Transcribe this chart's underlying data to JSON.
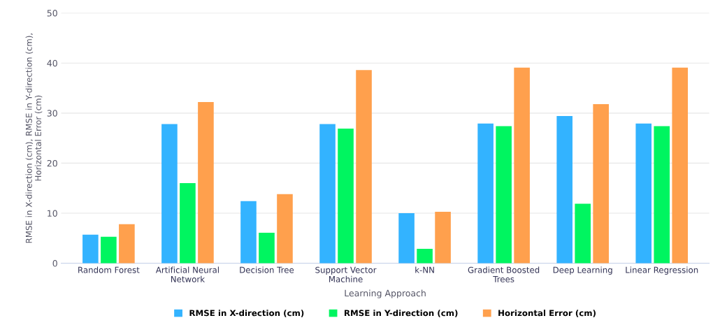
{
  "chart_data": {
    "type": "bar",
    "xlabel": "Learning Approach",
    "ylabel": "RMSE in X-direction (cm), RMSE in Y-direction (cm),\nHorizontal Error (cm)",
    "categories": [
      "Random Forest",
      "Artificial Neural\nNetwork",
      "Decision Tree",
      "Support Vector\nMachine",
      "k-NN",
      "Gradient Boosted\nTrees",
      "Deep Learning",
      "Linear Regression"
    ],
    "series": [
      {
        "name": "RMSE in X-direction (cm)",
        "color": "#33b3ff",
        "values": [
          5.7,
          27.8,
          12.4,
          27.8,
          10.0,
          27.9,
          29.4,
          27.9
        ]
      },
      {
        "name": "RMSE in Y-direction (cm)",
        "color": "#00f560",
        "values": [
          5.3,
          16.0,
          6.1,
          26.9,
          2.9,
          27.4,
          11.9,
          27.4
        ]
      },
      {
        "name": "Horizontal Error (cm)",
        "color": "#ffa04d",
        "values": [
          7.8,
          32.2,
          13.8,
          38.6,
          10.3,
          39.1,
          31.8,
          39.1
        ]
      }
    ],
    "ylim": [
      0,
      50
    ],
    "yticks": [
      0,
      10,
      20,
      30,
      40,
      50
    ],
    "grid": "y",
    "legend": "bottom"
  }
}
